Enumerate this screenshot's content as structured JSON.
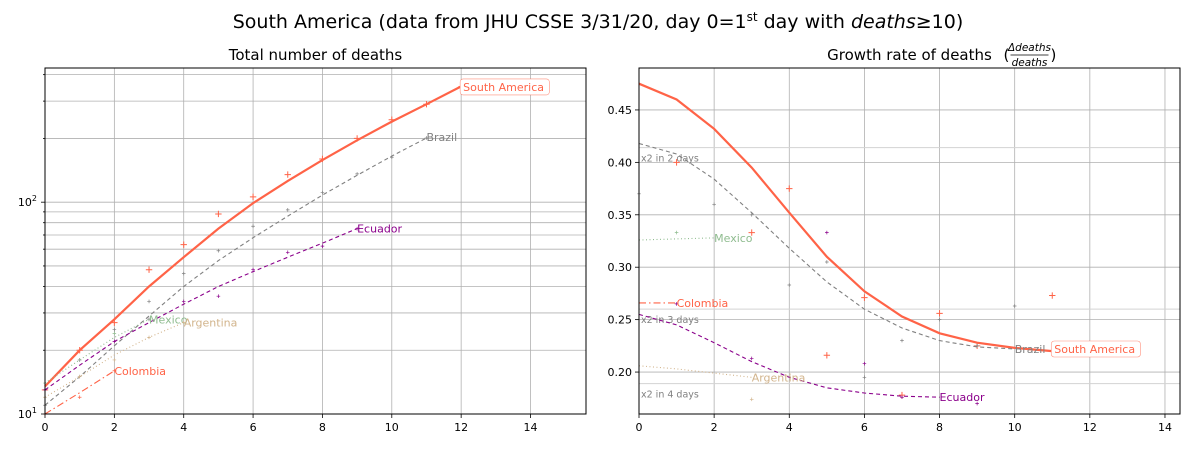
{
  "figure": {
    "suptitle_pre": "South America (data from JHU CSSE 3/31/20, day 0=1",
    "suptitle_sup": "st",
    "suptitle_mid": " day with ",
    "suptitle_italic": "deaths",
    "suptitle_post": "≥10)"
  },
  "colors": {
    "South America": "#ff6347",
    "Brazil": "#808080",
    "Ecuador": "#8b008b",
    "Mexico": "#8fbc8f",
    "Argentina": "#d2b48c",
    "Colombia": "#ff6347"
  },
  "chart_data": [
    {
      "type": "line",
      "title": "Total number of deaths",
      "xlabel": "",
      "ylabel": "",
      "yscale": "log",
      "xlim": [
        0,
        15.6
      ],
      "ylim": [
        10,
        430
      ],
      "xticks": [
        0,
        2,
        4,
        6,
        8,
        10,
        12,
        14
      ],
      "ytick_labels": [
        {
          "v": 10,
          "label": "10",
          "sup": "1"
        },
        {
          "v": 100,
          "label": "10",
          "sup": "2"
        }
      ],
      "grid": true,
      "series": [
        {
          "name": "South America",
          "style": "solid",
          "width": 2.2,
          "label_boxed": true,
          "label_at": [
            12,
            350
          ],
          "fit": {
            "x": [
              0,
              1,
              2,
              3,
              4,
              5,
              6,
              7,
              8,
              9,
              10,
              11,
              12
            ],
            "y": [
              13.5,
              20,
              28,
              40,
              55,
              75,
              99,
              126,
              158,
              196,
              240,
              290,
              352
            ]
          },
          "points": {
            "x": [
              0,
              1,
              2,
              3,
              4,
              5,
              6,
              7,
              8,
              9,
              10,
              11,
              12
            ],
            "y": [
              13,
              20,
              27,
              48,
              63,
              88,
              106,
              135,
              160,
              200,
              245,
              290,
              350
            ]
          }
        },
        {
          "name": "Brazil",
          "style": "dash",
          "width": 1.1,
          "label_at": [
            11,
            203
          ],
          "fit": {
            "x": [
              0,
              1,
              2,
              3,
              4,
              5,
              6,
              7,
              8,
              9,
              10,
              11
            ],
            "y": [
              11,
              15,
              21,
              29,
              40,
              53,
              68,
              86,
              108,
              134,
              165,
              201
            ]
          },
          "points": {
            "x": [
              0,
              1,
              2,
              3,
              4,
              5,
              6,
              7,
              8,
              9,
              10,
              11
            ],
            "y": [
              11,
              15,
              25,
              34,
              46,
              59,
              77,
              92,
              111,
              136,
              163,
              201
            ]
          }
        },
        {
          "name": "Ecuador",
          "style": "dash",
          "width": 1.1,
          "label_at": [
            9,
            75
          ],
          "fit": {
            "x": [
              0,
              1,
              2,
              3,
              4,
              5,
              6,
              7,
              8,
              9
            ],
            "y": [
              13,
              17,
              22,
              27,
              33,
              40,
              47,
              55,
              64,
              75
            ]
          },
          "points": {
            "x": [
              0,
              1,
              2,
              3,
              4,
              5,
              6,
              7,
              8,
              9
            ],
            "y": [
              13,
              18,
              22,
              28,
              34,
              36,
              48,
              58,
              62,
              75
            ]
          }
        },
        {
          "name": "Mexico",
          "style": "dot",
          "width": 1.1,
          "label_at": [
            3,
            28
          ],
          "fit": {
            "x": [
              0,
              1,
              2,
              3
            ],
            "y": [
              14,
              18,
              23,
              28
            ]
          },
          "points": {
            "x": [
              0,
              1,
              2,
              3
            ],
            "y": [
              14,
              18,
              24,
              28
            ]
          }
        },
        {
          "name": "Argentina",
          "style": "dot",
          "width": 1.1,
          "label_at": [
            4,
            27
          ],
          "fit": {
            "x": [
              0,
              1,
              2,
              3,
              4
            ],
            "y": [
              12,
              15,
              19,
              23,
              27
            ]
          },
          "points": {
            "x": [
              0,
              1,
              2,
              3,
              4
            ],
            "y": [
              12,
              15,
              18,
              23,
              27
            ]
          }
        },
        {
          "name": "Colombia",
          "style": "dashdot",
          "width": 1.1,
          "label_at": [
            2,
            16
          ],
          "fit": {
            "x": [
              0,
              1,
              2
            ],
            "y": [
              10,
              12.6,
              16
            ]
          },
          "points": {
            "x": [
              0,
              1,
              2
            ],
            "y": [
              10,
              12,
              16
            ]
          }
        }
      ]
    },
    {
      "type": "line",
      "title": "Growth rate of deaths",
      "title_frac_num": "Δdeaths",
      "title_frac_den": "deaths",
      "xlabel": "",
      "ylabel": "",
      "xlim": [
        0,
        14.4
      ],
      "ylim": [
        0.16,
        0.49
      ],
      "xticks": [
        0,
        2,
        4,
        6,
        8,
        10,
        12,
        14
      ],
      "yticks": [
        0.2,
        0.25,
        0.3,
        0.35,
        0.4,
        0.45
      ],
      "ytick_labels": [
        "0.20",
        "0.25",
        "0.30",
        "0.35",
        "0.40",
        "0.45"
      ],
      "grid": true,
      "reference_lines": [
        {
          "y": 0.414,
          "label": "x2 in 2 days"
        },
        {
          "y": 0.26,
          "label": "x2 in 3 days"
        },
        {
          "y": 0.189,
          "label": "x2 in 4 days"
        }
      ],
      "series": [
        {
          "name": "South America",
          "style": "solid",
          "width": 2.2,
          "label_boxed": true,
          "label_at": [
            11,
            0.222
          ],
          "fit": {
            "x": [
              0,
              1,
              2,
              3,
              4,
              5,
              6,
              7,
              8,
              9,
              10,
              11
            ],
            "y": [
              0.475,
              0.46,
              0.432,
              0.395,
              0.352,
              0.31,
              0.277,
              0.253,
              0.237,
              0.228,
              0.223,
              0.22
            ]
          },
          "points": {
            "x": [
              1,
              3,
              4,
              5,
              6,
              7,
              8,
              9,
              11
            ],
            "y": [
              0.4,
              0.333,
              0.375,
              0.216,
              0.271,
              0.178,
              0.256,
              0.225,
              0.273
            ]
          }
        },
        {
          "name": "Brazil",
          "style": "dash",
          "width": 1.1,
          "label_at": [
            10,
            0.222
          ],
          "fit": {
            "x": [
              0,
              1,
              2,
              3,
              4,
              5,
              6,
              7,
              8,
              9,
              10
            ],
            "y": [
              0.418,
              0.408,
              0.384,
              0.352,
              0.318,
              0.286,
              0.26,
              0.242,
              0.23,
              0.224,
              0.222
            ]
          },
          "points": {
            "x": [
              0,
              2,
              3,
              4,
              5,
              6,
              7,
              8,
              9,
              10
            ],
            "y": [
              0.37,
              0.36,
              0.35,
              0.283,
              0.305,
              0.195,
              0.23,
              0.25,
              0.225,
              0.263
            ]
          }
        },
        {
          "name": "Ecuador",
          "style": "dash",
          "width": 1.1,
          "label_at": [
            8,
            0.176
          ],
          "fit": {
            "x": [
              0,
              1,
              2,
              3,
              4,
              5,
              6,
              7,
              8
            ],
            "y": [
              0.255,
              0.245,
              0.228,
              0.21,
              0.195,
              0.185,
              0.18,
              0.177,
              0.176
            ]
          },
          "points": {
            "x": [
              1,
              3,
              5,
              6,
              7,
              9
            ],
            "y": [
              0.265,
              0.213,
              0.333,
              0.208,
              0.176,
              0.17
            ]
          }
        },
        {
          "name": "Mexico",
          "style": "dot",
          "width": 1.1,
          "label_at": [
            2,
            0.328
          ],
          "fit": {
            "x": [
              0,
              1,
              2
            ],
            "y": [
              0.326,
              0.327,
              0.328
            ]
          },
          "points": {
            "x": [
              1
            ],
            "y": [
              0.333
            ]
          }
        },
        {
          "name": "Argentina",
          "style": "dot",
          "width": 1.1,
          "label_at": [
            3,
            0.195
          ],
          "fit": {
            "x": [
              0,
              1,
              2,
              3
            ],
            "y": [
              0.206,
              0.203,
              0.199,
              0.195
            ]
          },
          "points": {
            "x": [
              3
            ],
            "y": [
              0.174
            ]
          }
        },
        {
          "name": "Colombia",
          "style": "dashdot",
          "width": 1.1,
          "label_at": [
            1,
            0.266
          ],
          "fit": {
            "x": [
              0,
              1
            ],
            "y": [
              0.266,
              0.266
            ]
          },
          "points": {
            "x": [],
            "y": []
          }
        }
      ]
    }
  ]
}
